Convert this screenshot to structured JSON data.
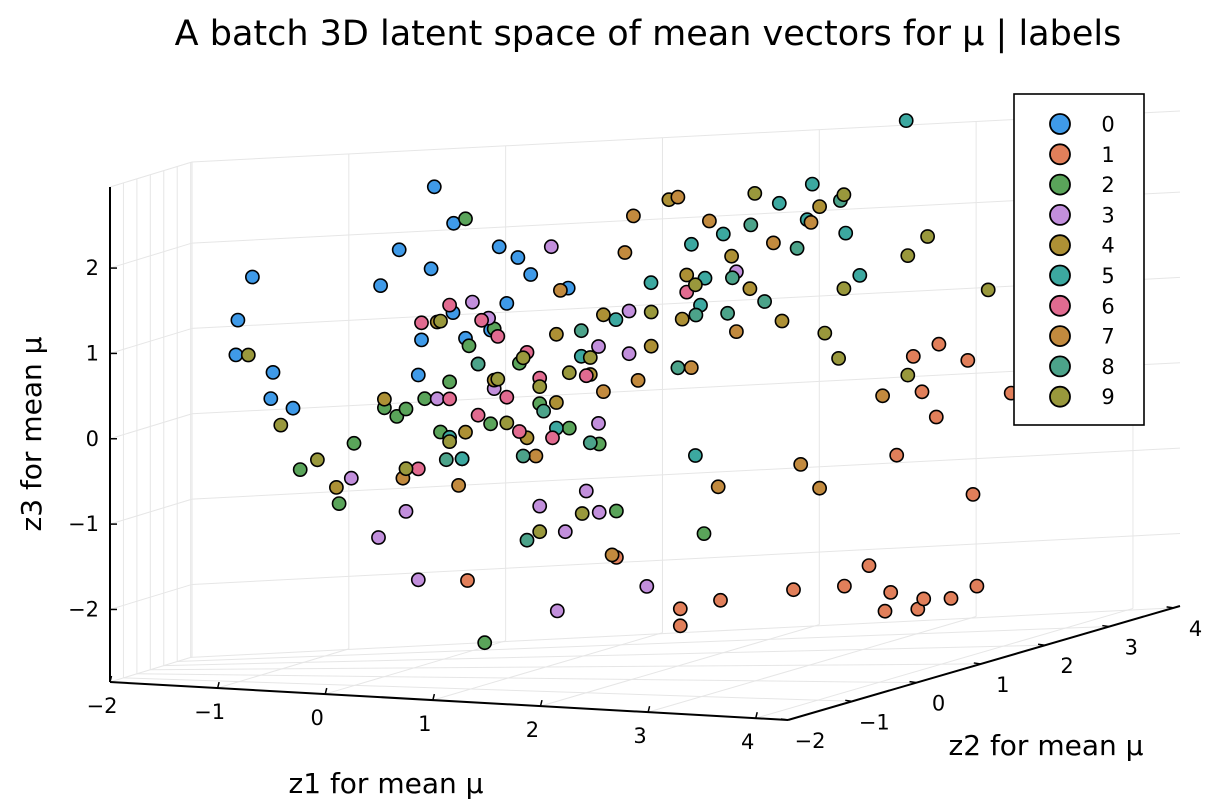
{
  "chart_data": {
    "type": "scatter",
    "title": "A batch 3D latent space of mean vectors for μ | labels",
    "xlabel": "z1 for mean μ",
    "ylabel": "z2 for mean μ",
    "zlabel": "z3 for mean μ",
    "xlim": [
      -2,
      4.3
    ],
    "ylim": [
      -2,
      4.1
    ],
    "zlim": [
      -2.85,
      2.95
    ],
    "x_ticks": [
      "−2",
      "−1",
      "0",
      "1",
      "2",
      "3",
      "4"
    ],
    "y_ticks": [
      "−2",
      "−1",
      "0",
      "1",
      "2",
      "3",
      "4"
    ],
    "z_ticks": [
      "−2",
      "−1",
      "0",
      "1",
      "2"
    ],
    "grid": true,
    "legend_position": "top-right",
    "legend": [
      "0",
      "1",
      "2",
      "3",
      "4",
      "5",
      "6",
      "7",
      "8",
      "9"
    ],
    "colors": [
      "#3f9ae8",
      "#e17f5a",
      "#5aa45a",
      "#c28fdc",
      "#ad9035",
      "#3ca8a0",
      "#e16b90",
      "#c28a3e",
      "#4ca38a",
      "#99983c"
    ],
    "series": [
      {
        "label": "0",
        "points": [
          [
            -1.1,
            0.2,
            1.8
          ],
          [
            -1.2,
            0.1,
            1.3
          ],
          [
            -1.2,
            0.0,
            0.9
          ],
          [
            -0.9,
            0.0,
            0.7
          ],
          [
            -0.9,
            -0.1,
            0.4
          ],
          [
            -0.7,
            -0.2,
            0.3
          ],
          [
            -0.1,
            0.3,
            1.7
          ],
          [
            0.0,
            0.5,
            2.1
          ],
          [
            0.4,
            0.6,
            2.4
          ],
          [
            0.3,
            0.4,
            2.85
          ],
          [
            0.3,
            0.3,
            1.9
          ],
          [
            0.7,
            0.8,
            2.1
          ],
          [
            0.9,
            0.6,
            2.0
          ],
          [
            1.0,
            0.6,
            1.8
          ],
          [
            1.2,
            0.9,
            1.6
          ],
          [
            0.5,
            0.2,
            1.4
          ],
          [
            0.3,
            0.0,
            1.1
          ],
          [
            0.6,
            0.2,
            1.1
          ],
          [
            0.8,
            0.2,
            1.2
          ],
          [
            0.9,
            0.3,
            1.5
          ],
          [
            0.3,
            -0.1,
            0.7
          ]
        ]
      },
      {
        "label": "1",
        "points": [
          [
            3.3,
            2.6,
            0.6
          ],
          [
            3.2,
            2.4,
            0.5
          ],
          [
            3.5,
            2.6,
            0.4
          ],
          [
            3.3,
            2.3,
            0.1
          ],
          [
            3.4,
            2.3,
            -0.2
          ],
          [
            3.8,
            2.6,
            0.0
          ],
          [
            4.0,
            2.8,
            0.1
          ],
          [
            4.1,
            2.7,
            -0.2
          ],
          [
            3.2,
            2.1,
            -0.6
          ],
          [
            3.7,
            2.2,
            -1.1
          ],
          [
            3.2,
            1.6,
            -1.8
          ],
          [
            3.1,
            1.4,
            -2.0
          ],
          [
            3.4,
            1.5,
            -2.1
          ],
          [
            3.6,
            1.5,
            -2.3
          ],
          [
            3.8,
            1.6,
            -2.2
          ],
          [
            2.4,
            0.8,
            -2.05
          ],
          [
            2.8,
            1.2,
            -2.0
          ],
          [
            2.2,
            0.5,
            -2.3
          ],
          [
            2.2,
            0.5,
            -2.1
          ],
          [
            3.4,
            1.4,
            -2.3
          ],
          [
            3.6,
            1.6,
            -2.2
          ],
          [
            3.9,
            1.8,
            -2.1
          ],
          [
            1.7,
            0.5,
            -1.5
          ],
          [
            0.7,
            -0.1,
            -1.7
          ]
        ]
      },
      {
        "label": "2",
        "points": [
          [
            -0.6,
            -0.4,
            -0.4
          ],
          [
            -0.3,
            -0.3,
            -0.8
          ],
          [
            0.6,
            0.2,
            2.5
          ],
          [
            -0.2,
            -0.2,
            -0.1
          ],
          [
            0.1,
            0.0,
            0.2
          ],
          [
            0.3,
            0.1,
            0.4
          ],
          [
            0.5,
            0.1,
            0.6
          ],
          [
            0.7,
            0.2,
            0.8
          ],
          [
            0.6,
            0.3,
            1.0
          ],
          [
            0.8,
            0.3,
            1.2
          ],
          [
            1.1,
            0.5,
            0.3
          ],
          [
            1.3,
            0.6,
            0.0
          ],
          [
            1.5,
            0.7,
            -0.2
          ],
          [
            1.6,
            0.8,
            -1.0
          ],
          [
            2.2,
            1.0,
            -1.3
          ],
          [
            0.9,
            -0.3,
            -2.4
          ],
          [
            0.2,
            -0.1,
            0.3
          ],
          [
            0.6,
            0.1,
            -0.3
          ],
          [
            0.8,
            0.2,
            0.1
          ],
          [
            1.0,
            0.3,
            0.8
          ],
          [
            0.4,
            0.2,
            0.0
          ],
          [
            0.0,
            0.0,
            0.3
          ]
        ]
      },
      {
        "label": "3",
        "points": [
          [
            0.6,
            0.4,
            1.5
          ],
          [
            0.7,
            0.5,
            1.3
          ],
          [
            1.1,
            0.8,
            2.1
          ],
          [
            1.6,
            1.1,
            1.3
          ],
          [
            1.4,
            1.0,
            0.9
          ],
          [
            1.6,
            1.1,
            0.8
          ],
          [
            1.4,
            1.0,
            0.0
          ],
          [
            0.8,
            0.3,
            0.5
          ],
          [
            0.4,
            0.1,
            0.4
          ],
          [
            0.0,
            -0.2,
            -1.2
          ],
          [
            0.2,
            -0.1,
            -0.9
          ],
          [
            0.3,
            -0.1,
            -1.7
          ],
          [
            1.1,
            0.5,
            -0.9
          ],
          [
            1.3,
            0.5,
            -1.2
          ],
          [
            1.4,
            0.7,
            -0.75
          ],
          [
            2.3,
            1.4,
            1.7
          ],
          [
            -0.2,
            -0.3,
            -0.5
          ],
          [
            1.8,
            0.9,
            -1.9
          ],
          [
            1.3,
            0.3,
            -2.1
          ],
          [
            1.5,
            0.7,
            -1.0
          ]
        ]
      },
      {
        "label": "4",
        "points": [
          [
            0.0,
            0.0,
            0.4
          ],
          [
            0.4,
            0.1,
            1.3
          ],
          [
            0.8,
            0.3,
            0.6
          ],
          [
            1.2,
            0.6,
            0.3
          ],
          [
            1.4,
            0.8,
            0.6
          ],
          [
            1.8,
            1.0,
            0.9
          ],
          [
            2.0,
            1.1,
            1.2
          ],
          [
            2.4,
            1.4,
            1.5
          ],
          [
            1.0,
            0.5,
            -0.1
          ],
          [
            -0.3,
            -0.4,
            -0.6
          ],
          [
            1.2,
            0.6,
            1.1
          ],
          [
            1.5,
            0.8,
            1.3
          ],
          [
            2.0,
            1.2,
            1.7
          ],
          [
            2.3,
            1.3,
            1.9
          ],
          [
            2.8,
            1.7,
            2.4
          ],
          [
            1.9,
            1.1,
            2.6
          ],
          [
            2.6,
            1.5,
            1.1
          ],
          [
            0.6,
            0.2,
            0.0
          ]
        ]
      },
      {
        "label": "5",
        "points": [
          [
            3.0,
            2.8,
            3.2
          ],
          [
            2.6,
            2.1,
            2.6
          ],
          [
            2.4,
            2.0,
            2.4
          ],
          [
            2.1,
            1.7,
            2.1
          ],
          [
            1.9,
            1.6,
            2.0
          ],
          [
            2.0,
            1.6,
            1.6
          ],
          [
            1.7,
            1.3,
            1.6
          ],
          [
            2.0,
            1.5,
            1.3
          ],
          [
            1.5,
            1.1,
            1.2
          ],
          [
            1.3,
            0.9,
            0.8
          ],
          [
            2.6,
            2.0,
            2.2
          ],
          [
            2.8,
            2.2,
            2.0
          ],
          [
            2.9,
            2.2,
            1.5
          ],
          [
            1.2,
            0.6,
            0.0
          ],
          [
            2.1,
            1.1,
            -0.4
          ],
          [
            0.6,
            0.1,
            -0.3
          ],
          [
            0.5,
            0.1,
            -0.05
          ]
        ]
      },
      {
        "label": "6",
        "points": [
          [
            0.3,
            0.0,
            1.3
          ],
          [
            0.7,
            0.3,
            1.3
          ],
          [
            0.8,
            0.4,
            1.1
          ],
          [
            1.0,
            0.5,
            0.9
          ],
          [
            1.1,
            0.5,
            0.6
          ],
          [
            1.4,
            0.7,
            0.6
          ],
          [
            0.5,
            0.1,
            1.5
          ],
          [
            0.9,
            0.3,
            0.4
          ],
          [
            0.7,
            0.2,
            0.2
          ],
          [
            0.3,
            -0.1,
            -0.4
          ],
          [
            1.0,
            0.3,
            0.0
          ],
          [
            1.2,
            0.5,
            -0.1
          ],
          [
            2.0,
            1.2,
            1.5
          ],
          [
            0.5,
            0.1,
            0.4
          ]
        ]
      },
      {
        "label": "7",
        "points": [
          [
            1.6,
            1.2,
            2.4
          ],
          [
            1.9,
            1.3,
            2.6
          ],
          [
            2.1,
            1.4,
            2.3
          ],
          [
            2.7,
            1.8,
            2.2
          ],
          [
            2.5,
            1.6,
            2.0
          ],
          [
            1.6,
            1.0,
            2.0
          ],
          [
            1.2,
            0.7,
            1.6
          ],
          [
            2.0,
            1.3,
            0.6
          ],
          [
            2.3,
            1.4,
            1.0
          ],
          [
            1.7,
            1.0,
            0.5
          ],
          [
            1.5,
            0.8,
            0.4
          ],
          [
            2.2,
            1.3,
            -0.8
          ],
          [
            2.7,
            1.6,
            -0.6
          ],
          [
            2.8,
            1.7,
            -0.9
          ],
          [
            3.1,
            2.1,
            0.1
          ],
          [
            0.2,
            -0.2,
            -0.5
          ],
          [
            1.1,
            0.4,
            -0.3
          ],
          [
            0.6,
            0.0,
            -0.6
          ],
          [
            1.6,
            0.7,
            -1.5
          ]
        ]
      },
      {
        "label": "8",
        "points": [
          [
            2.8,
            2.1,
            2.4
          ],
          [
            2.3,
            1.7,
            2.2
          ],
          [
            2.6,
            1.8,
            1.9
          ],
          [
            2.2,
            1.6,
            1.6
          ],
          [
            2.2,
            1.5,
            1.2
          ],
          [
            2.0,
            1.4,
            1.2
          ],
          [
            1.9,
            1.3,
            0.6
          ],
          [
            1.3,
            0.9,
            1.1
          ],
          [
            1.1,
            0.6,
            0.2
          ],
          [
            1.4,
            0.8,
            -0.2
          ],
          [
            0.7,
            0.2,
            0.8
          ],
          [
            0.5,
            0.0,
            -0.3
          ],
          [
            1.0,
            0.4,
            -0.3
          ],
          [
            2.4,
            1.7,
            1.3
          ],
          [
            1.0,
            0.5,
            -1.3
          ]
        ]
      },
      {
        "label": "9",
        "points": [
          [
            -1.1,
            0.0,
            0.9
          ],
          [
            -0.8,
            -0.2,
            0.1
          ],
          [
            -0.5,
            -0.2,
            -0.3
          ],
          [
            0.4,
            0.2,
            1.3
          ],
          [
            0.8,
            0.4,
            0.6
          ],
          [
            1.1,
            0.5,
            0.5
          ],
          [
            1.4,
            0.8,
            0.8
          ],
          [
            1.8,
            1.0,
            1.3
          ],
          [
            2.4,
            1.5,
            2.6
          ],
          [
            2.9,
            1.9,
            2.5
          ],
          [
            2.9,
            1.9,
            1.4
          ],
          [
            3.2,
            2.3,
            1.7
          ],
          [
            3.3,
            2.4,
            1.9
          ],
          [
            2.8,
            1.8,
            0.9
          ],
          [
            2.9,
            1.8,
            0.6
          ],
          [
            3.6,
            2.7,
            1.2
          ],
          [
            3.2,
            2.3,
            0.3
          ],
          [
            0.5,
            0.1,
            -0.1
          ],
          [
            1.1,
            0.5,
            -1.2
          ],
          [
            1.4,
            0.6,
            -1.0
          ],
          [
            0.9,
            0.3,
            0.1
          ],
          [
            1.3,
            0.6,
            0.65
          ],
          [
            1.0,
            0.4,
            0.85
          ],
          [
            0.2,
            -0.1,
            -0.4
          ],
          [
            2.1,
            1.1,
            1.6
          ]
        ]
      }
    ]
  }
}
